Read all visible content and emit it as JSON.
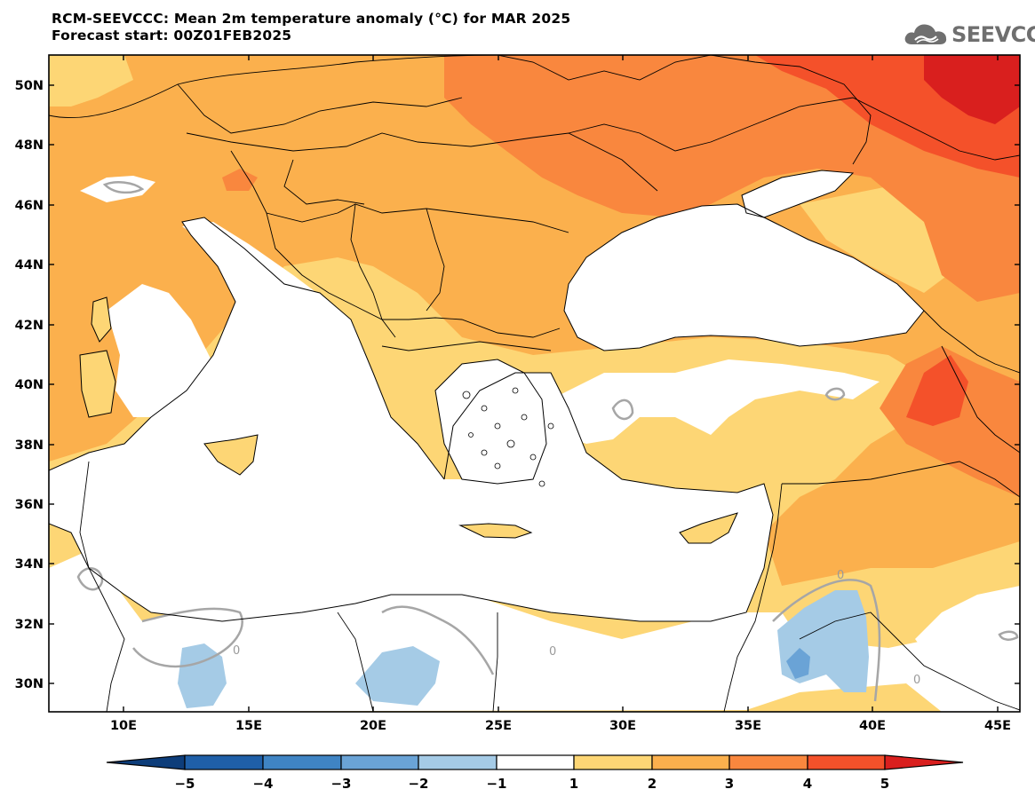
{
  "title": {
    "line1": "RCM-SEEVCCC: Mean 2m temperature anomaly (°C) for MAR 2025",
    "line2": "Forecast start: 00Z01FEB2025"
  },
  "logo": {
    "text": "SEEVCCC",
    "icon": "cloud-icon"
  },
  "map": {
    "lat_labels": [
      "50N",
      "48N",
      "46N",
      "44N",
      "42N",
      "40N",
      "38N",
      "36N",
      "34N",
      "32N",
      "30N"
    ],
    "lon_labels": [
      "10E",
      "15E",
      "20E",
      "25E",
      "30E",
      "35E",
      "40E",
      "45E"
    ],
    "contour_labels": [
      "0",
      "0",
      "0",
      "0"
    ]
  },
  "colorbar": {
    "tick_labels": [
      "−5",
      "−4",
      "−3",
      "−2",
      "−1",
      "1",
      "2",
      "3",
      "4",
      "5"
    ],
    "colors": [
      "#0d3d7a",
      "#1f5fa8",
      "#3f84c4",
      "#6aa3d6",
      "#a5cbe6",
      "#ffffff",
      "#fdd675",
      "#fbb04d",
      "#f9873e",
      "#f4512a",
      "#d91f1e"
    ]
  }
}
